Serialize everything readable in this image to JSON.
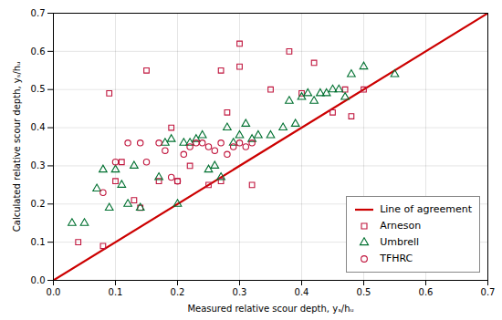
{
  "chart_data": {
    "type": "scatter",
    "xlabel": "Measured relative scour depth, yₛ/hᵤ",
    "ylabel": "Calculated relative scour depth, yₛ/hᵤ",
    "xlim": [
      0.0,
      0.7
    ],
    "ylim": [
      0.0,
      0.7
    ],
    "xticks": [
      {
        "value": 0.0,
        "label": "0.0"
      },
      0.1,
      0.2,
      0.3,
      0.4,
      0.5,
      0.6,
      0.7
    ],
    "yticks": [
      {
        "value": 0.0,
        "label": "0.0"
      },
      0.1,
      0.2,
      0.3,
      0.4,
      0.5,
      0.6,
      0.7
    ],
    "grid": true,
    "legend": "lower right",
    "series": [
      {
        "name": "Line of agreement",
        "type": "line",
        "color": "#cc0000",
        "line_style": "solid",
        "x": [
          0.0,
          0.7
        ],
        "values": [
          0.0,
          0.7
        ]
      },
      {
        "name": "Arneson",
        "type": "scatter",
        "marker": "square",
        "color": "#c0143c",
        "x": [
          0.04,
          0.08,
          0.09,
          0.1,
          0.11,
          0.13,
          0.14,
          0.15,
          0.17,
          0.19,
          0.2,
          0.22,
          0.25,
          0.27,
          0.27,
          0.28,
          0.3,
          0.3,
          0.32,
          0.35,
          0.38,
          0.4,
          0.42,
          0.45,
          0.47,
          0.48,
          0.5
        ],
        "values": [
          0.1,
          0.09,
          0.49,
          0.26,
          0.31,
          0.21,
          0.19,
          0.55,
          0.26,
          0.4,
          0.26,
          0.3,
          0.25,
          0.26,
          0.55,
          0.44,
          0.62,
          0.56,
          0.25,
          0.5,
          0.6,
          0.49,
          0.57,
          0.44,
          0.5,
          0.43,
          0.5
        ]
      },
      {
        "name": "Umbrell",
        "type": "scatter",
        "marker": "triangle",
        "color": "#007030",
        "x": [
          0.03,
          0.05,
          0.07,
          0.08,
          0.09,
          0.1,
          0.11,
          0.12,
          0.13,
          0.14,
          0.17,
          0.18,
          0.19,
          0.2,
          0.21,
          0.22,
          0.23,
          0.24,
          0.25,
          0.26,
          0.27,
          0.28,
          0.29,
          0.3,
          0.31,
          0.32,
          0.33,
          0.35,
          0.37,
          0.38,
          0.39,
          0.4,
          0.41,
          0.42,
          0.43,
          0.44,
          0.45,
          0.46,
          0.47,
          0.48,
          0.5,
          0.55
        ],
        "values": [
          0.15,
          0.15,
          0.24,
          0.29,
          0.19,
          0.29,
          0.25,
          0.2,
          0.3,
          0.19,
          0.27,
          0.36,
          0.37,
          0.2,
          0.36,
          0.36,
          0.37,
          0.38,
          0.29,
          0.3,
          0.27,
          0.4,
          0.36,
          0.38,
          0.41,
          0.37,
          0.38,
          0.38,
          0.4,
          0.47,
          0.41,
          0.48,
          0.49,
          0.47,
          0.49,
          0.49,
          0.5,
          0.5,
          0.48,
          0.54,
          0.56,
          0.54
        ]
      },
      {
        "name": "TFHRC",
        "type": "scatter",
        "marker": "circle",
        "color": "#c0143c",
        "x": [
          0.08,
          0.1,
          0.12,
          0.14,
          0.15,
          0.17,
          0.18,
          0.19,
          0.2,
          0.21,
          0.22,
          0.23,
          0.24,
          0.25,
          0.26,
          0.27,
          0.28,
          0.29,
          0.3,
          0.31,
          0.32
        ],
        "values": [
          0.23,
          0.31,
          0.36,
          0.36,
          0.31,
          0.36,
          0.34,
          0.27,
          0.26,
          0.33,
          0.35,
          0.36,
          0.36,
          0.35,
          0.34,
          0.36,
          0.33,
          0.35,
          0.36,
          0.35,
          0.36
        ]
      }
    ]
  }
}
